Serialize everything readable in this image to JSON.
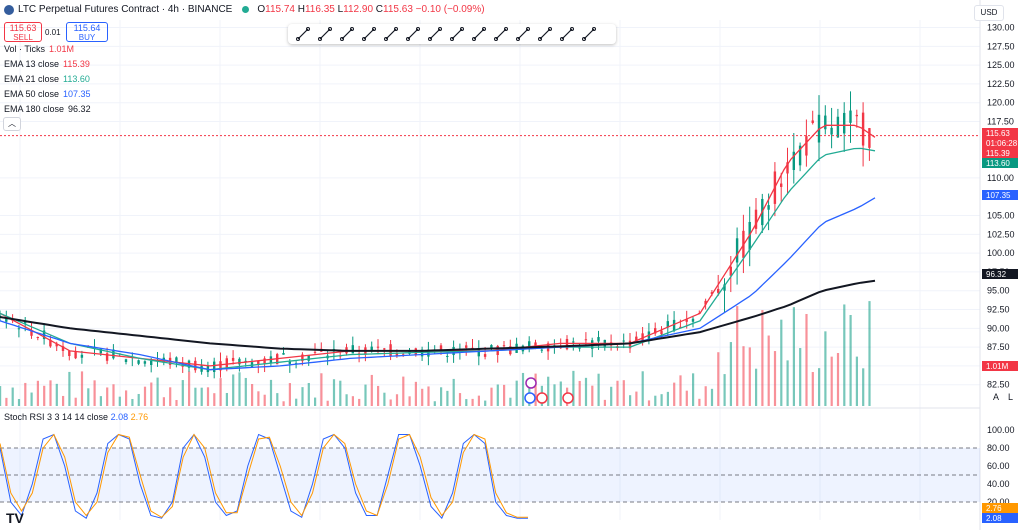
{
  "header": {
    "symbol": "LTC Perpetual Futures Contract · 4h · BINANCE",
    "open_key": "O",
    "open": "115.74",
    "high_key": "H",
    "high": "116.35",
    "low_key": "L",
    "low": "112.90",
    "close_key": "C",
    "close": "115.63",
    "change": "−0.10 (−0.09%)"
  },
  "trade": {
    "sell_price": "115.63",
    "sell_label": "SELL",
    "spread": "0.01",
    "buy_price": "115.64",
    "buy_label": "BUY"
  },
  "indicators": [
    {
      "label": "Vol · Ticks",
      "value": "1.01M",
      "color": "#f23645"
    },
    {
      "label": "EMA 13 close",
      "value": "115.39",
      "color": "#f23645"
    },
    {
      "label": "EMA 21 close",
      "value": "113.60",
      "color": "#22ab94"
    },
    {
      "label": "EMA 50 close",
      "value": "107.35",
      "color": "#2962ff"
    },
    {
      "label": "EMA 180 close",
      "value": "96.32",
      "color": "#131722"
    }
  ],
  "collapse_icon": "chevron-up-icon",
  "currency": "USD",
  "toolbar": [
    "trend-line-icon",
    "horizontal-line-icon",
    "parallel-channel-icon",
    "ray-icon",
    "text-icon",
    "rectangle-icon",
    "long-position-icon",
    "vertical-line-icon",
    "path-icon",
    "fib-retracement-icon",
    "price-range-icon",
    "polyline-icon",
    "arrow-marker-icon",
    "brush-icon"
  ],
  "price_axis": {
    "ticks": [
      "130.00",
      "127.50",
      "125.00",
      "122.50",
      "120.00",
      "117.50",
      "110.00",
      "105.00",
      "102.50",
      "100.00",
      "97.50",
      "95.00",
      "92.50",
      "90.00",
      "87.50",
      "85.00",
      "82.50"
    ]
  },
  "price_labels": [
    {
      "text": "115.63",
      "color": "#f23645"
    },
    {
      "text": "01:06:28",
      "color": "#f23645"
    },
    {
      "text": "115.39",
      "color": "#f23645"
    },
    {
      "text": "113.60",
      "color": "#089981"
    },
    {
      "text": "107.35",
      "color": "#2962ff"
    },
    {
      "text": "96.32",
      "color": "#131722"
    },
    {
      "text": "1.01M",
      "color": "#f23645"
    }
  ],
  "rsi": {
    "label": "Stoch RSI 3 3 14 14 close",
    "k": "2.08",
    "d": "2.76",
    "k_color": "#2962ff",
    "d_color": "#ff9800",
    "axis_ticks": [
      "100.00",
      "80.00",
      "60.00",
      "40.00",
      "20.00"
    ],
    "labels": [
      {
        "text": "2.76",
        "color": "#ff9800"
      },
      {
        "text": "2.08",
        "color": "#2962ff"
      }
    ]
  },
  "axis_buttons": {
    "auto": "A",
    "log": "L"
  },
  "watermark": "TV",
  "chart_data": [
    {
      "type": "candlestick",
      "title": "LTC Perpetual Futures Contract · 4h · BINANCE",
      "ylim": [
        81,
        131
      ],
      "grid": true,
      "series": [
        {
          "name": "EMA 13 close",
          "color": "#f23645",
          "x": [
            0,
            20,
            40,
            60,
            80,
            100,
            120,
            140,
            160,
            180,
            200,
            215,
            225,
            235,
            245,
            250
          ],
          "y": [
            92,
            87,
            86,
            85,
            86,
            87,
            87,
            87,
            88,
            88,
            92,
            103,
            112,
            117,
            117,
            115.4
          ]
        },
        {
          "name": "EMA 21 close",
          "color": "#22ab94",
          "x": [
            0,
            20,
            40,
            60,
            80,
            100,
            120,
            140,
            160,
            180,
            200,
            215,
            225,
            235,
            245,
            250
          ],
          "y": [
            92,
            88,
            86,
            84.5,
            85.5,
            86.5,
            86.8,
            87,
            87.5,
            87.5,
            91,
            101,
            108,
            113,
            114,
            113.6
          ]
        },
        {
          "name": "EMA 50 close",
          "color": "#2962ff",
          "x": [
            0,
            20,
            40,
            60,
            80,
            100,
            120,
            140,
            160,
            180,
            200,
            215,
            225,
            235,
            245,
            250
          ],
          "y": [
            91,
            88,
            86.5,
            84.5,
            85,
            86,
            86.5,
            87,
            87.5,
            88,
            90,
            94.5,
            99,
            104,
            106,
            107.35
          ]
        },
        {
          "name": "EMA 180 close",
          "color": "#131722",
          "x": [
            0,
            20,
            40,
            60,
            80,
            100,
            120,
            140,
            160,
            180,
            200,
            215,
            225,
            235,
            245,
            250
          ],
          "y": [
            91.5,
            90,
            89,
            88,
            87.3,
            87,
            87,
            87.3,
            87.6,
            88,
            89.5,
            91.5,
            93,
            95,
            96,
            96.32
          ]
        }
      ],
      "close_price": 115.63
    },
    {
      "type": "line",
      "title": "Stoch RSI 3 3 14 14 close",
      "ylim": [
        0,
        100
      ],
      "bands": [
        20,
        50,
        80
      ],
      "series": [
        {
          "name": "K",
          "color": "#2962ff",
          "values": [
            80,
            20,
            5,
            40,
            90,
            95,
            60,
            10,
            2,
            30,
            85,
            95,
            90,
            40,
            5,
            2,
            20,
            80,
            95,
            70,
            20,
            5,
            10,
            60,
            95,
            90,
            50,
            10,
            3,
            40,
            90,
            95,
            80,
            30,
            5,
            5,
            50,
            95,
            95,
            60,
            15,
            2,
            30,
            85,
            95,
            85,
            20,
            5,
            2,
            2
          ]
        },
        {
          "name": "D",
          "color": "#ff9800",
          "values": [
            85,
            30,
            10,
            30,
            80,
            95,
            70,
            20,
            5,
            20,
            75,
            95,
            92,
            50,
            10,
            3,
            15,
            70,
            95,
            80,
            30,
            8,
            8,
            50,
            90,
            92,
            60,
            20,
            5,
            30,
            80,
            95,
            85,
            40,
            10,
            5,
            40,
            90,
            95,
            70,
            25,
            5,
            20,
            75,
            95,
            90,
            30,
            8,
            3,
            3
          ]
        }
      ]
    }
  ]
}
